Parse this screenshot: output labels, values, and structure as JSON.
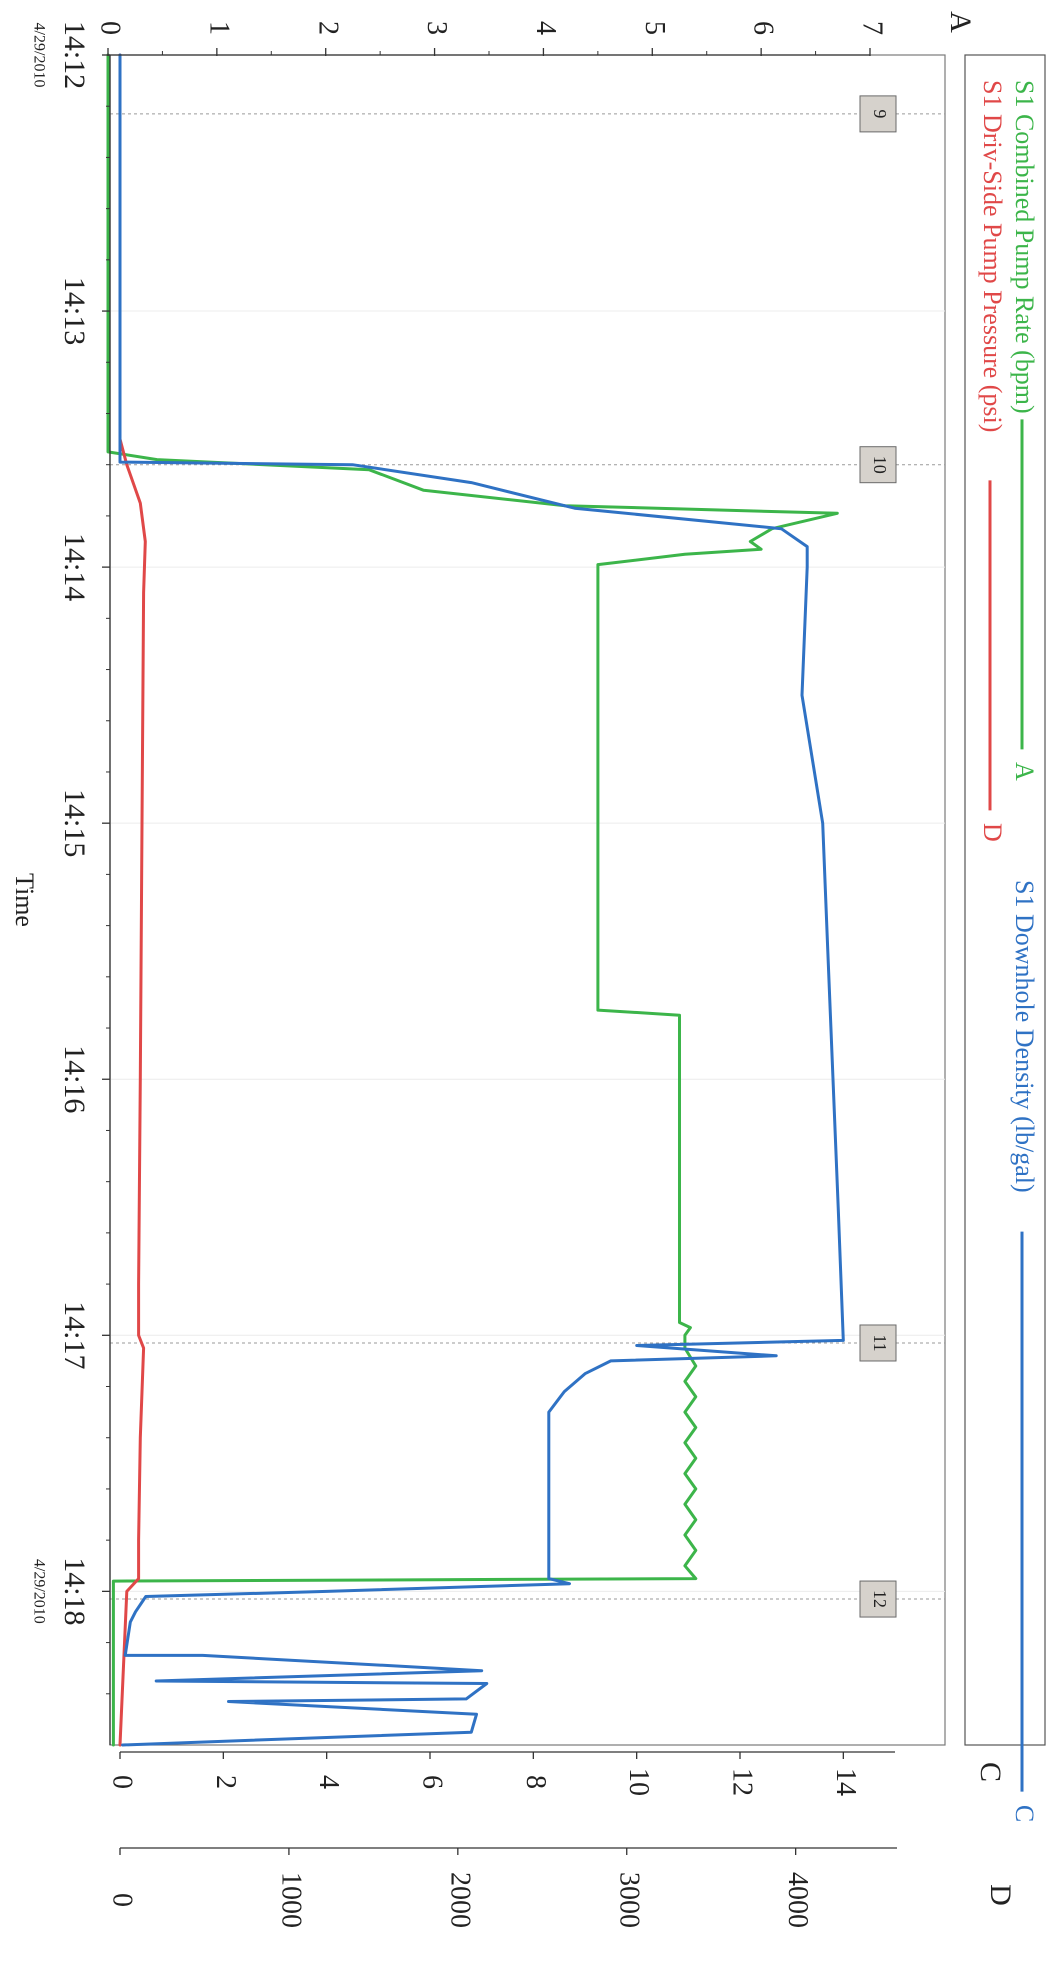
{
  "chart_data": {
    "type": "line",
    "xlabel": "Time",
    "x_ticks": [
      {
        "t": "14:12",
        "date": "4/29/2010"
      },
      {
        "t": "14:13",
        "date": ""
      },
      {
        "t": "14:14",
        "date": ""
      },
      {
        "t": "14:15",
        "date": ""
      },
      {
        "t": "14:16",
        "date": ""
      },
      {
        "t": "14:17",
        "date": ""
      },
      {
        "t": "14:18",
        "date": "4/29/2010"
      }
    ],
    "axes": {
      "A": {
        "label": "A",
        "min": 0,
        "max": 7,
        "ticks": [
          "0",
          "1",
          "2",
          "3",
          "4",
          "5",
          "6",
          "7"
        ]
      },
      "C": {
        "label": "C",
        "min": 0,
        "max": 15,
        "ticks": [
          "0",
          "2",
          "4",
          "6",
          "8",
          "10",
          "12",
          "14"
        ]
      },
      "D": {
        "label": "D",
        "min": 0,
        "max": 4600,
        "ticks": [
          "0",
          "1000",
          "2000",
          "3000",
          "4000"
        ]
      }
    },
    "legend": [
      {
        "name": "S1 Combined Pump Rate (bpm)",
        "axis": "A",
        "color": "#3cb54a"
      },
      {
        "name": "S1 Driv-Side Pump Pressure (psi)",
        "axis": "D",
        "color": "#e04848"
      },
      {
        "name": "S1 Downhole Density (lb/gal)",
        "axis": "C",
        "color": "#2f72c4"
      }
    ],
    "markers": [
      {
        "label": "9",
        "time_min": 0.23
      },
      {
        "label": "10",
        "time_min": 1.6
      },
      {
        "label": "11",
        "time_min": 5.03
      },
      {
        "label": "12",
        "time_min": 6.03
      }
    ],
    "series": [
      {
        "name": "S1 Combined Pump Rate (bpm)",
        "axis": "A",
        "color": "#3cb54a",
        "points": [
          [
            0,
            0
          ],
          [
            1.55,
            0
          ],
          [
            1.58,
            0.45
          ],
          [
            1.62,
            2.4
          ],
          [
            1.7,
            2.9
          ],
          [
            1.76,
            4.2
          ],
          [
            1.79,
            6.7
          ],
          [
            1.85,
            6.1
          ],
          [
            1.9,
            5.9
          ],
          [
            1.93,
            6.0
          ],
          [
            1.95,
            5.3
          ],
          [
            1.99,
            4.5
          ],
          [
            2.0,
            4.5
          ],
          [
            3.73,
            4.5
          ],
          [
            3.75,
            5.25
          ],
          [
            4.95,
            5.25
          ],
          [
            4.97,
            5.35
          ],
          [
            5.0,
            5.3
          ],
          [
            5.05,
            5.3
          ],
          [
            5.12,
            5.4
          ],
          [
            5.18,
            5.3
          ],
          [
            5.24,
            5.4
          ],
          [
            5.3,
            5.3
          ],
          [
            5.36,
            5.4
          ],
          [
            5.42,
            5.3
          ],
          [
            5.48,
            5.4
          ],
          [
            5.54,
            5.3
          ],
          [
            5.6,
            5.4
          ],
          [
            5.66,
            5.3
          ],
          [
            5.72,
            5.4
          ],
          [
            5.78,
            5.3
          ],
          [
            5.84,
            5.4
          ],
          [
            5.9,
            5.3
          ],
          [
            5.95,
            5.4
          ],
          [
            5.96,
            0.05
          ],
          [
            6.6,
            0.05
          ]
        ]
      },
      {
        "name": "S1 Driv-Side Pump Pressure (psi)",
        "axis": "D",
        "color": "#e04848",
        "points": [
          [
            0,
            0
          ],
          [
            1.5,
            0
          ],
          [
            1.6,
            40
          ],
          [
            1.75,
            120
          ],
          [
            1.9,
            150
          ],
          [
            2.1,
            140
          ],
          [
            3.0,
            130
          ],
          [
            4.0,
            120
          ],
          [
            4.8,
            110
          ],
          [
            5.0,
            110
          ],
          [
            5.05,
            140
          ],
          [
            5.4,
            120
          ],
          [
            5.8,
            110
          ],
          [
            5.95,
            110
          ],
          [
            6.0,
            40
          ],
          [
            6.3,
            20
          ],
          [
            6.6,
            0
          ]
        ]
      },
      {
        "name": "S1 Downhole Density (lb/gal)",
        "axis": "C",
        "color": "#2f72c4",
        "points": [
          [
            0,
            0
          ],
          [
            1.59,
            0
          ],
          [
            1.6,
            4.5
          ],
          [
            1.67,
            6.8
          ],
          [
            1.77,
            8.8
          ],
          [
            1.85,
            12.8
          ],
          [
            1.92,
            13.3
          ],
          [
            2.0,
            13.3
          ],
          [
            2.5,
            13.2
          ],
          [
            3.0,
            13.6
          ],
          [
            3.5,
            13.7
          ],
          [
            4.0,
            13.8
          ],
          [
            4.5,
            13.9
          ],
          [
            5.02,
            14.0
          ],
          [
            5.04,
            10.0
          ],
          [
            5.08,
            12.7
          ],
          [
            5.1,
            9.5
          ],
          [
            5.15,
            9.0
          ],
          [
            5.22,
            8.6
          ],
          [
            5.3,
            8.3
          ],
          [
            5.6,
            8.3
          ],
          [
            5.95,
            8.3
          ],
          [
            5.97,
            8.7
          ],
          [
            6.0,
            4.0
          ],
          [
            6.02,
            0.5
          ],
          [
            6.08,
            0.3
          ],
          [
            6.12,
            0.2
          ],
          [
            6.25,
            0.1
          ],
          [
            6.25,
            1.6
          ],
          [
            6.31,
            7.0
          ],
          [
            6.35,
            0.7
          ],
          [
            6.36,
            7.1
          ],
          [
            6.42,
            6.7
          ],
          [
            6.43,
            2.1
          ],
          [
            6.48,
            6.9
          ],
          [
            6.55,
            6.8
          ],
          [
            6.6,
            0.05
          ]
        ]
      }
    ]
  }
}
